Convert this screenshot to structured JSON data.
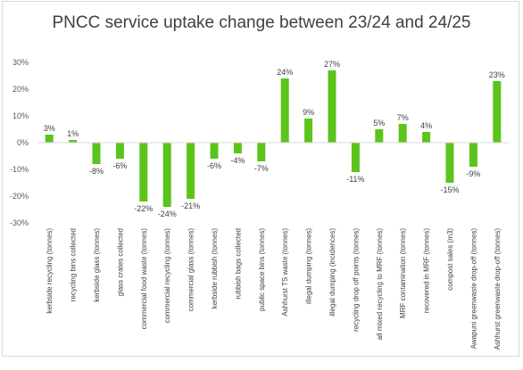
{
  "chart_data": {
    "type": "bar",
    "title": "PNCC service uptake change between 23/24 and 24/25",
    "xlabel": "",
    "ylabel": "",
    "ylim": [
      -0.3,
      0.3
    ],
    "yticks": [
      "30%",
      "20%",
      "10%",
      "0%",
      "-10%",
      "-20%",
      "-30%"
    ],
    "ytick_values": [
      0.3,
      0.2,
      0.1,
      0.0,
      -0.1,
      -0.2,
      -0.3
    ],
    "grid": false,
    "legend": "none",
    "bar_color": "#5bc41a",
    "categories": [
      "kerbside recycling (tonnes)",
      "recycling bins collected",
      "kerbside glass (tonnes)",
      "glass crates collected",
      "commercial food waste (tonnes)",
      "commercial recycling (tonnes)",
      "commercial glass (tonnes)",
      "kerbside rubbish (tonnes)",
      "rubbish bags collected",
      "public space bins (tonnes)",
      "Ashhurst TS waste (tonnes)",
      "illegal dumping (tonnes)",
      "illegal dumping (incidences)",
      "recycling drop off points (tonnes)",
      "all mixed recycling to MRF (tonnes)",
      "MRF contamination (tonnes)",
      "recovered in MRF (tonnes)",
      "compost sales (m3)",
      "Awapuni greenwaste drop-off (tonnes)",
      "Ashhurst greenwaste drop-off (tonnes)"
    ],
    "values": [
      0.03,
      0.01,
      -0.08,
      -0.06,
      -0.22,
      -0.24,
      -0.21,
      -0.06,
      -0.04,
      -0.07,
      0.24,
      0.09,
      0.27,
      -0.11,
      0.05,
      0.07,
      0.04,
      -0.15,
      -0.09,
      0.23
    ],
    "data_labels": [
      "3%",
      "1%",
      "-8%",
      "-6%",
      "-22%",
      "-24%",
      "-21%",
      "-6%",
      "-4%",
      "-7%",
      "24%",
      "9%",
      "27%",
      "-11%",
      "5%",
      "7%",
      "4%",
      "-15%",
      "-9%",
      "23%"
    ]
  }
}
